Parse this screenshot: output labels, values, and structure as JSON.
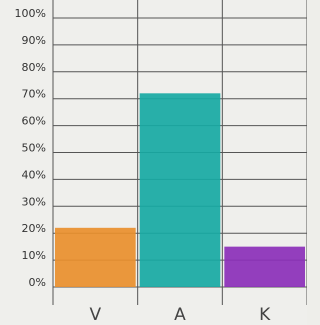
{
  "chart_data": {
    "type": "bar",
    "categories": [
      "V",
      "A",
      "K"
    ],
    "values": [
      22,
      72,
      15
    ],
    "colors": [
      "#e98f2c",
      "#17a9a3",
      "#8b2fb9"
    ],
    "ylim": [
      0,
      100
    ],
    "yticks": [
      {
        "value": 0,
        "label": "0%"
      },
      {
        "value": 10,
        "label": "10%"
      },
      {
        "value": 20,
        "label": "20%"
      },
      {
        "value": 30,
        "label": "30%"
      },
      {
        "value": 40,
        "label": "40%"
      },
      {
        "value": 50,
        "label": "50%"
      },
      {
        "value": 60,
        "label": "60%"
      },
      {
        "value": 70,
        "label": "70%"
      },
      {
        "value": 80,
        "label": "80%"
      },
      {
        "value": 90,
        "label": "90%"
      },
      {
        "value": 100,
        "label": "100%"
      }
    ],
    "grid": true
  }
}
